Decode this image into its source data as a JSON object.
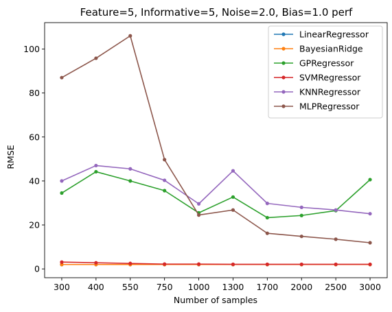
{
  "chart_data": {
    "type": "line",
    "title": "Feature=5, Informative=5, Noise=2.0, Bias=1.0 perf",
    "xlabel": "Number of samples",
    "ylabel": "RMSE",
    "categories": [
      "300",
      "400",
      "550",
      "750",
      "1000",
      "1300",
      "1700",
      "2000",
      "2500",
      "3000"
    ],
    "ylim": [
      -4,
      112
    ],
    "yticks": [
      0,
      20,
      40,
      60,
      80,
      100
    ],
    "grid": false,
    "legend_position": "top-right",
    "series": [
      {
        "name": "LinearRegressor",
        "color": "#1f77b4",
        "values": [
          2.0,
          2.0,
          2.0,
          2.0,
          2.0,
          2.0,
          2.0,
          2.0,
          2.0,
          2.0
        ]
      },
      {
        "name": "BayesianRidge",
        "color": "#ff7f0e",
        "values": [
          2.0,
          2.0,
          2.0,
          2.0,
          2.0,
          2.0,
          2.0,
          2.0,
          2.0,
          2.0
        ]
      },
      {
        "name": "GPRegressor",
        "color": "#2ca02c",
        "values": [
          34.5,
          44.2,
          40.0,
          35.6,
          25.5,
          32.7,
          23.3,
          24.3,
          26.5,
          40.6
        ]
      },
      {
        "name": "SVMRegressor",
        "color": "#d62728",
        "values": [
          3.1,
          2.8,
          2.5,
          2.2,
          2.2,
          2.1,
          2.1,
          2.1,
          2.1,
          2.1
        ]
      },
      {
        "name": "KNNRegressor",
        "color": "#9467bd",
        "values": [
          40.0,
          47.0,
          45.5,
          40.3,
          29.6,
          44.6,
          29.8,
          28.0,
          26.8,
          25.1
        ]
      },
      {
        "name": "MLPRegressor",
        "color": "#8c564b",
        "values": [
          87.0,
          95.8,
          106.0,
          49.7,
          24.5,
          26.8,
          16.2,
          14.8,
          13.5,
          11.9
        ]
      }
    ]
  }
}
